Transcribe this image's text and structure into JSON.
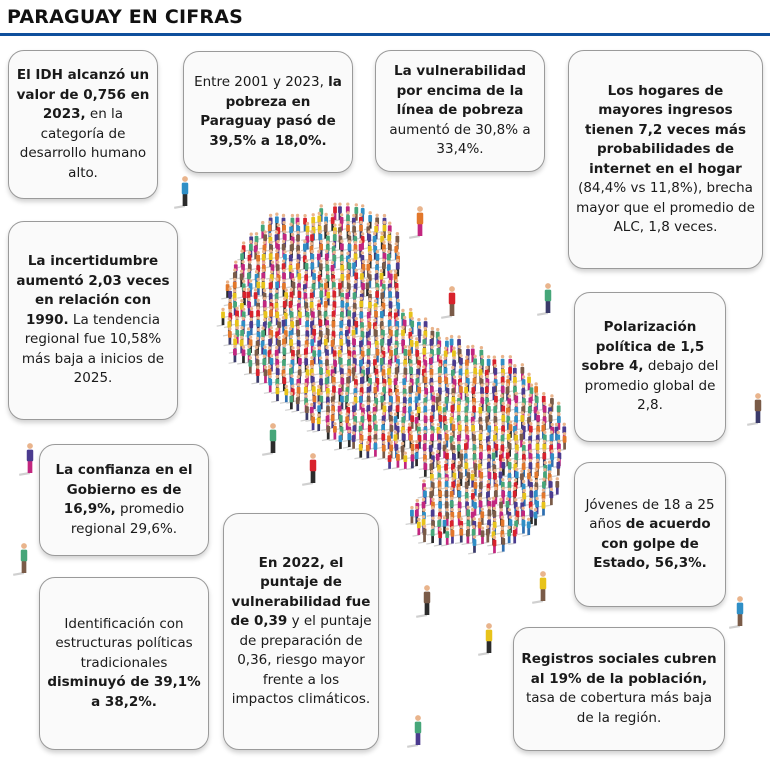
{
  "header": {
    "title": "PARAGUAY EN CIFRAS",
    "accent_color": "#0e4f9c"
  },
  "cards": [
    {
      "id": "idh",
      "parts": [
        {
          "b": true,
          "t": "El IDH alcanzó un valor de 0,756 en 2023,"
        },
        {
          "b": false,
          "t": " en la categoría de desarrollo humano alto."
        }
      ]
    },
    {
      "id": "pobreza",
      "parts": [
        {
          "b": false,
          "t": "Entre 2001 y 2023, "
        },
        {
          "b": true,
          "t": "la pobreza en Paraguay pasó de 39,5% a 18,0%."
        }
      ]
    },
    {
      "id": "vulnerabilidad",
      "parts": [
        {
          "b": true,
          "t": "La vulnerabilidad por encima de la línea de pobreza"
        },
        {
          "b": false,
          "t": " aumentó de 30,8% a 33,4%."
        }
      ]
    },
    {
      "id": "hogares",
      "parts": [
        {
          "b": true,
          "t": "Los hogares de mayores ingresos tienen 7,2 veces más probabilidades de internet en el hogar"
        },
        {
          "b": false,
          "t": " (84,4% vs 11,8%), brecha mayor que el promedio de ALC, 1,8 veces."
        }
      ]
    },
    {
      "id": "incertidumbre",
      "parts": [
        {
          "b": true,
          "t": "La incertidumbre aumentó 2,03 veces en relación con 1990."
        },
        {
          "b": false,
          "t": " La tendencia regional fue 10,58% más baja a inicios de 2025."
        }
      ]
    },
    {
      "id": "polarizacion",
      "parts": [
        {
          "b": true,
          "t": "Polarización política de 1,5 sobre 4,"
        },
        {
          "b": false,
          "t": " debajo del promedio global de 2,8."
        }
      ]
    },
    {
      "id": "confianza",
      "parts": [
        {
          "b": true,
          "t": "La confianza en el Gobierno es de 16,9%,"
        },
        {
          "b": false,
          "t": " promedio regional 29,6%."
        }
      ]
    },
    {
      "id": "jovenes",
      "parts": [
        {
          "b": false,
          "t": "Jóvenes de 18 a 25 años "
        },
        {
          "b": true,
          "t": "de acuerdo con golpe de Estado, 56,3%."
        }
      ]
    },
    {
      "id": "puntaje",
      "parts": [
        {
          "b": true,
          "t": "En 2022, el puntaje de vulnerabilidad fue de 0,39"
        },
        {
          "b": false,
          "t": " y el puntaje de preparación de 0,36, riesgo mayor frente a los impactos climáticos."
        }
      ]
    },
    {
      "id": "identificacion",
      "parts": [
        {
          "b": false,
          "t": "Identificación con estructuras políticas tradicionales "
        },
        {
          "b": true,
          "t": "disminuyó de 39,1% a 38,2%."
        }
      ]
    },
    {
      "id": "registros",
      "parts": [
        {
          "b": true,
          "t": "Registros sociales cubren al 19% de la población,"
        },
        {
          "b": false,
          "t": " tasa de cobertura más baja de la región."
        }
      ]
    }
  ],
  "illustration": {
    "name": "crowd-map-of-paraguay",
    "palette": [
      "#e8c31a",
      "#2f8fc6",
      "#d8222c",
      "#c2267f",
      "#46a679",
      "#7a5b48",
      "#4b3b8f",
      "#e2772a"
    ]
  }
}
